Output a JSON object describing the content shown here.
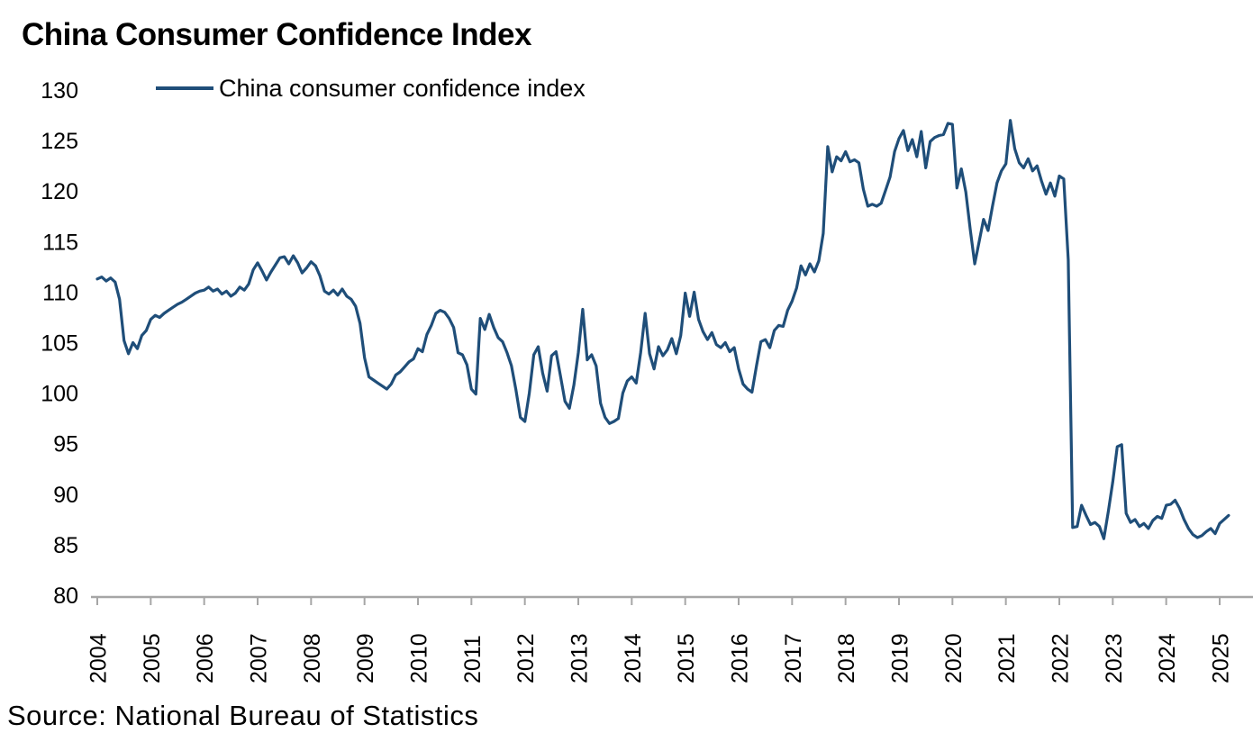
{
  "title": "China Consumer Confidence Index",
  "legend": {
    "label": "China consumer confidence index"
  },
  "source": "Source: National Bureau of Statistics",
  "colors": {
    "line": "#1F4E79",
    "axis": "#A6A6A6",
    "text": "#000000",
    "background": "#FFFFFF"
  },
  "chart_data": {
    "type": "line",
    "title": "China Consumer Confidence Index",
    "xlabel": "",
    "ylabel": "",
    "ylim": [
      80,
      130
    ],
    "y_ticks": [
      80,
      85,
      90,
      95,
      100,
      105,
      110,
      115,
      120,
      125,
      130
    ],
    "x_tick_labels": [
      "2004",
      "2005",
      "2006",
      "2007",
      "2008",
      "2009",
      "2010",
      "2011",
      "2012",
      "2013",
      "2014",
      "2015",
      "2016",
      "2017",
      "2018",
      "2019",
      "2020",
      "2021",
      "2022",
      "2023",
      "2024",
      "2025"
    ],
    "x_frequency": "monthly",
    "x_start": "2004-01",
    "x_end": "2025-03",
    "grid": false,
    "legend_position": "top-left",
    "series": [
      {
        "name": "China consumer confidence index",
        "color": "#1F4E79",
        "values": [
          111.3,
          111.5,
          111.1,
          111.4,
          111.0,
          109.3,
          105.2,
          103.9,
          105.0,
          104.4,
          105.7,
          106.2,
          107.3,
          107.7,
          107.5,
          107.9,
          108.2,
          108.5,
          108.8,
          109.0,
          109.3,
          109.6,
          109.9,
          110.1,
          110.2,
          110.5,
          110.1,
          110.3,
          109.8,
          110.1,
          109.6,
          109.9,
          110.5,
          110.2,
          110.8,
          112.2,
          112.9,
          112.1,
          111.2,
          112.0,
          112.7,
          113.4,
          113.5,
          112.8,
          113.6,
          112.9,
          111.9,
          112.4,
          113.0,
          112.6,
          111.6,
          110.1,
          109.8,
          110.2,
          109.7,
          110.3,
          109.6,
          109.3,
          108.6,
          106.9,
          103.5,
          101.6,
          101.3,
          101.0,
          100.7,
          100.4,
          100.9,
          101.8,
          102.1,
          102.6,
          103.1,
          103.4,
          104.4,
          104.1,
          105.8,
          106.7,
          107.9,
          108.2,
          108.0,
          107.4,
          106.5,
          104.0,
          103.8,
          102.8,
          100.4,
          99.9,
          107.4,
          106.3,
          107.8,
          106.5,
          105.5,
          105.1,
          104.0,
          102.7,
          100.3,
          97.6,
          97.2,
          100.0,
          103.8,
          104.6,
          102.0,
          100.2,
          103.7,
          104.1,
          101.7,
          99.2,
          98.5,
          100.8,
          104.0,
          108.3,
          103.3,
          103.8,
          102.7,
          99.0,
          97.6,
          97.0,
          97.2,
          97.5,
          100.0,
          101.2,
          101.6,
          101.0,
          104.0,
          107.9,
          103.9,
          102.4,
          104.6,
          103.7,
          104.3,
          105.4,
          103.9,
          105.7,
          109.9,
          107.6,
          110.0,
          107.3,
          106.1,
          105.3,
          106.0,
          104.8,
          104.5,
          105.0,
          104.1,
          104.5,
          102.4,
          100.9,
          100.4,
          100.1,
          102.7,
          105.1,
          105.3,
          104.5,
          106.2,
          106.7,
          106.6,
          108.2,
          109.1,
          110.4,
          112.6,
          111.7,
          112.8,
          112.0,
          113.1,
          115.8,
          124.4,
          121.9,
          123.4,
          123.0,
          123.9,
          122.9,
          123.1,
          122.8,
          120.2,
          118.5,
          118.7,
          118.5,
          118.8,
          120.1,
          121.4,
          123.9,
          125.2,
          126.0,
          124.0,
          125.1,
          123.4,
          125.9,
          122.3,
          124.9,
          125.3,
          125.5,
          125.6,
          126.7,
          126.6,
          120.3,
          122.2,
          119.9,
          116.2,
          112.8,
          115.0,
          117.2,
          116.1,
          118.5,
          120.8,
          122.0,
          122.7,
          127.0,
          124.2,
          122.8,
          122.3,
          123.2,
          122.0,
          122.5,
          121.0,
          119.7,
          120.8,
          119.5,
          121.5,
          121.2,
          113.2,
          86.7,
          86.8,
          88.9,
          87.9,
          87.0,
          87.2,
          86.8,
          85.6,
          88.3,
          91.2,
          94.7,
          94.9,
          88.1,
          87.2,
          87.5,
          86.8,
          87.1,
          86.6,
          87.4,
          87.8,
          87.6,
          88.9,
          89.0,
          89.4,
          88.6,
          87.5,
          86.6,
          86.0,
          85.7,
          85.9,
          86.3,
          86.6,
          86.1,
          87.1,
          87.5,
          87.9
        ]
      }
    ]
  }
}
